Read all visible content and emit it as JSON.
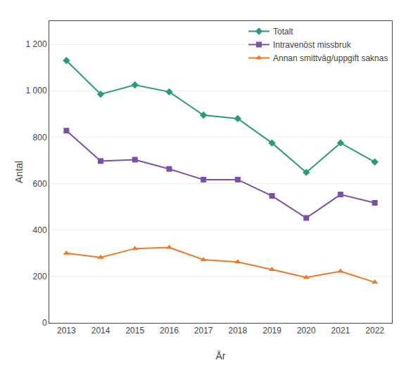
{
  "chart_data": {
    "type": "line",
    "x": [
      2013,
      2014,
      2015,
      2016,
      2017,
      2018,
      2019,
      2020,
      2021,
      2022
    ],
    "series": [
      {
        "name": "Totalt",
        "color": "#2a9d6e",
        "marker": "diamond",
        "values": [
          1130,
          985,
          1025,
          995,
          895,
          880,
          775,
          648,
          775,
          693
        ]
      },
      {
        "name": "Intravenöst missbruk",
        "color": "#7b4fa6",
        "marker": "square",
        "values": [
          828,
          697,
          703,
          663,
          617,
          617,
          547,
          452,
          553,
          517
        ]
      },
      {
        "name": "Annan smittväg/uppgift saknas",
        "color": "#e87b2a",
        "marker": "triangle",
        "values": [
          300,
          282,
          320,
          325,
          272,
          262,
          230,
          196,
          222,
          175
        ]
      }
    ],
    "xlabel": "År",
    "ylabel": "Antal",
    "xlim": [
      2012.5,
      2022.5
    ],
    "xticks": [
      2013,
      2014,
      2015,
      2016,
      2017,
      2018,
      2019,
      2020,
      2021,
      2022
    ],
    "ylim": [
      0,
      1300
    ],
    "yticks": [
      0,
      200,
      400,
      600,
      800,
      {
        "value": 1000,
        "label": "1 000"
      },
      {
        "value": 1200,
        "label": "1 200"
      }
    ],
    "grid": true,
    "legend": "upper right"
  }
}
